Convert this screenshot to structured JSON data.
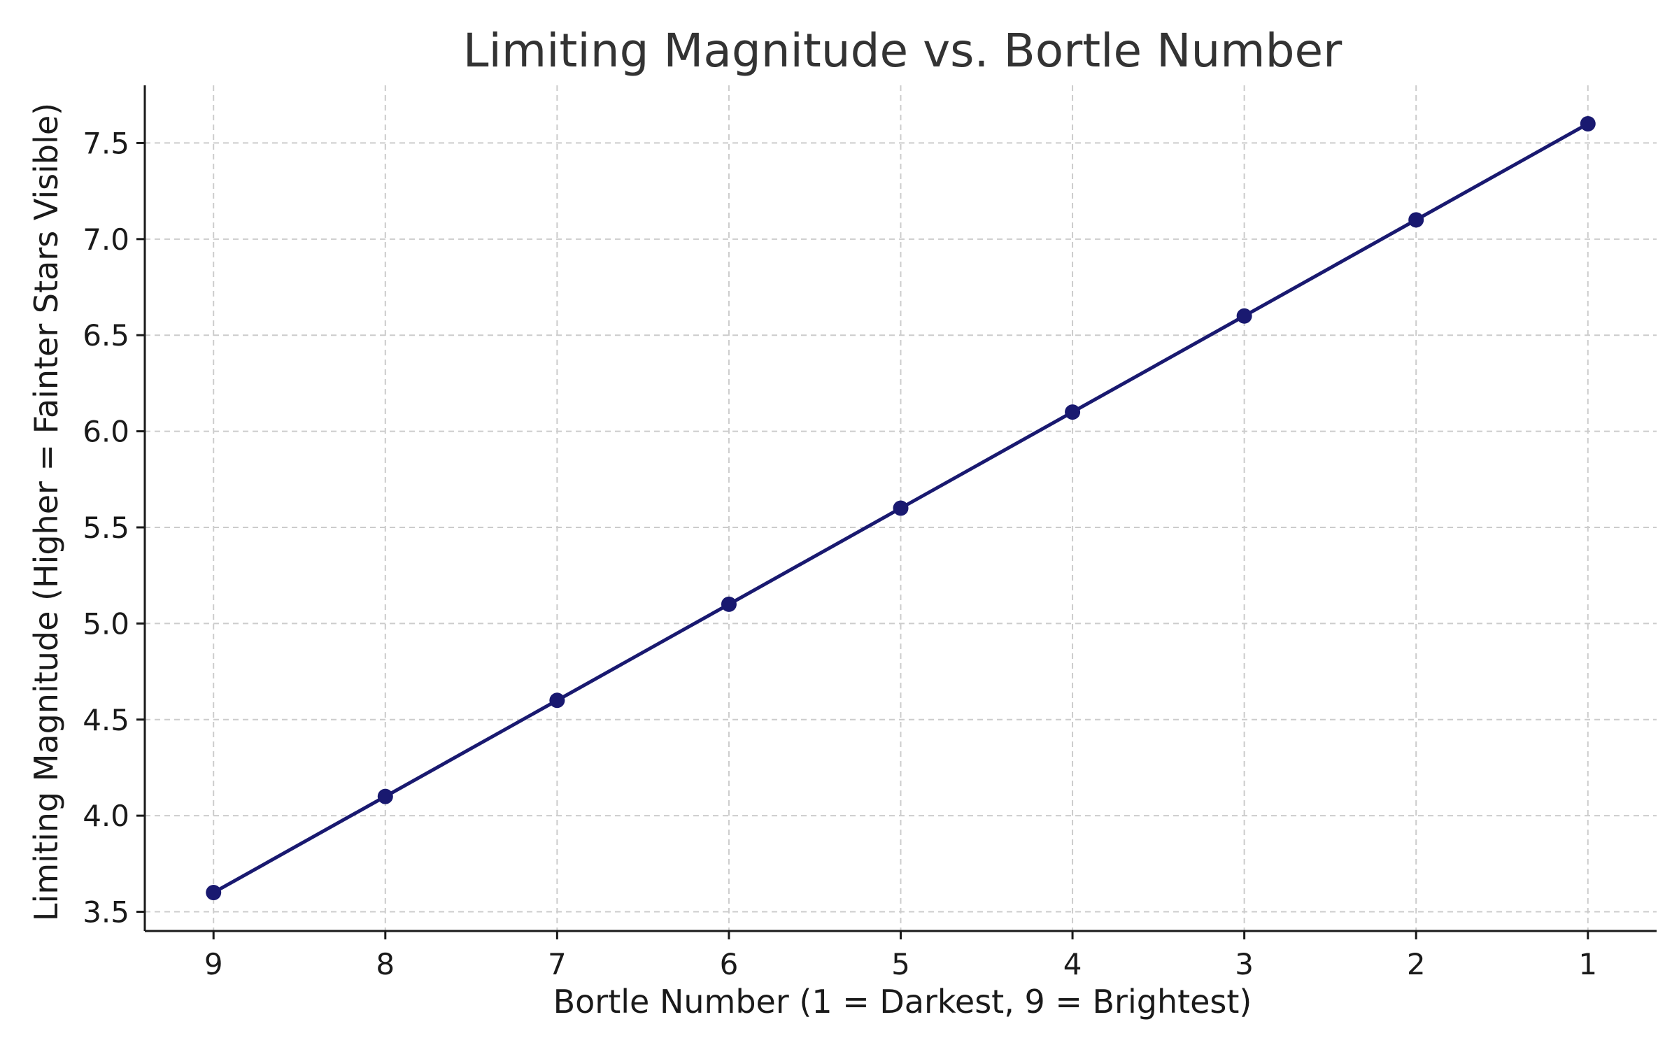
{
  "chart_data": {
    "type": "line",
    "title": "Limiting Magnitude vs. Bortle Number",
    "xlabel": "Bortle Number (1 = Darkest, 9 = Brightest)",
    "ylabel": "Limiting Magnitude (Higher = Fainter Stars Visible)",
    "x_axis_reversed": true,
    "x": [
      9,
      8,
      7,
      6,
      5,
      4,
      3,
      2,
      1
    ],
    "x_tick_labels": [
      "9",
      "8",
      "7",
      "6",
      "5",
      "4",
      "3",
      "2",
      "1"
    ],
    "y_ticks": [
      3.5,
      4.0,
      4.5,
      5.0,
      5.5,
      6.0,
      6.5,
      7.0,
      7.5
    ],
    "y_tick_labels": [
      "3.5",
      "4.0",
      "4.5",
      "5.0",
      "5.5",
      "6.0",
      "6.5",
      "7.0",
      "7.5"
    ],
    "series": [
      {
        "values": [
          3.6,
          4.1,
          4.6,
          5.1,
          5.6,
          6.1,
          6.6,
          7.1,
          7.6
        ],
        "color": "#191970",
        "marker": "circle"
      }
    ],
    "xlim": [
      9.4,
      0.6
    ],
    "ylim": [
      3.4,
      7.8
    ],
    "grid": true,
    "legend": "none"
  }
}
